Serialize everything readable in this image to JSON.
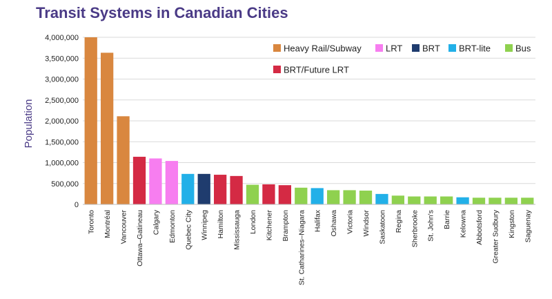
{
  "chart_data": {
    "type": "bar",
    "title": "Transit Systems in Canadian Cities",
    "xlabel": "",
    "ylabel": "Population",
    "ylim": [
      0,
      4000000
    ],
    "yticks": [
      {
        "value": 0,
        "label": "0"
      },
      {
        "value": 500000,
        "label": "500,000"
      },
      {
        "value": 1000000,
        "label": "1,000,000"
      },
      {
        "value": 1500000,
        "label": "1,500,000"
      },
      {
        "value": 2000000,
        "label": "2,000,000"
      },
      {
        "value": 2500000,
        "label": "2,500,000"
      },
      {
        "value": 3000000,
        "label": "3,000,000"
      },
      {
        "value": 3500000,
        "label": "3,500,000"
      },
      {
        "value": 4000000,
        "label": "4,000,000"
      }
    ],
    "grid": true,
    "legend_position": "top-right",
    "legend": [
      {
        "key": "heavy",
        "label": "Heavy Rail/Subway",
        "color": "#d9873f"
      },
      {
        "key": "lrt",
        "label": "LRT",
        "color": "#f77ef0"
      },
      {
        "key": "brt",
        "label": "BRT",
        "color": "#1f3c6e"
      },
      {
        "key": "brtlite",
        "label": "BRT-lite",
        "color": "#22b0e8"
      },
      {
        "key": "bus",
        "label": "Bus",
        "color": "#8fd14f"
      },
      {
        "key": "brtfuture",
        "label": "BRT/Future LRT",
        "color": "#d42a44"
      }
    ],
    "categories": [
      "Toronto",
      "Montréal",
      "Vancouver",
      "Ottawa–Gatineau",
      "Calgary",
      "Edmonton",
      "Quebec City",
      "Winnipeg",
      "Hamilton",
      "Mississauga",
      "London",
      "Kitchener",
      "Brampton",
      "St. Catharines–Niagara",
      "Halifax",
      "Oshawa",
      "Victoria",
      "Windsor",
      "Saskatoon",
      "Regina",
      "Sherbrooke",
      "St. John's",
      "Barrie",
      "Kelowna",
      "Abbotsford",
      "Greater Sudbury",
      "Kingston",
      "Saguenay"
    ],
    "values": [
      4000000,
      3630000,
      2110000,
      1140000,
      1100000,
      1040000,
      730000,
      730000,
      710000,
      680000,
      470000,
      480000,
      460000,
      400000,
      390000,
      340000,
      340000,
      330000,
      250000,
      210000,
      190000,
      190000,
      190000,
      170000,
      160000,
      160000,
      160000,
      160000
    ],
    "types": [
      "heavy",
      "heavy",
      "heavy",
      "brtfuture",
      "lrt",
      "lrt",
      "brtlite",
      "brt",
      "brtfuture",
      "brtfuture",
      "bus",
      "brtfuture",
      "brtfuture",
      "bus",
      "brtlite",
      "bus",
      "bus",
      "bus",
      "brtlite",
      "bus",
      "bus",
      "bus",
      "bus",
      "brtlite",
      "bus",
      "bus",
      "bus",
      "bus"
    ]
  }
}
